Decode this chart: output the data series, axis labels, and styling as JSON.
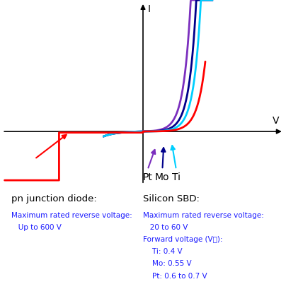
{
  "background_color": "#ffffff",
  "curves": {
    "pn": {
      "color": "#ff0000"
    },
    "Ti": {
      "color": "#00cfff"
    },
    "Mo": {
      "color": "#00008b"
    },
    "Pt": {
      "color": "#7b2fbe"
    }
  },
  "pn_label": "pn junction diode:",
  "sbd_label": "Silicon SBD:",
  "pn_info1": "Maximum rated reverse voltage:",
  "pn_info2": "   Up to 600 V",
  "sbd_info1": "Maximum rated reverse voltage:",
  "sbd_info2": "   20 to 60 V",
  "sbd_info3": "Forward voltage (V₟):",
  "sbd_info4": "    Ti: 0.4 V",
  "sbd_info5": "    Mo: 0.55 V",
  "sbd_info6": "    Pt: 0.6 to 0.7 V",
  "label_color": "#1a1aff",
  "info_color": "#1a1aff",
  "black": "#000000"
}
